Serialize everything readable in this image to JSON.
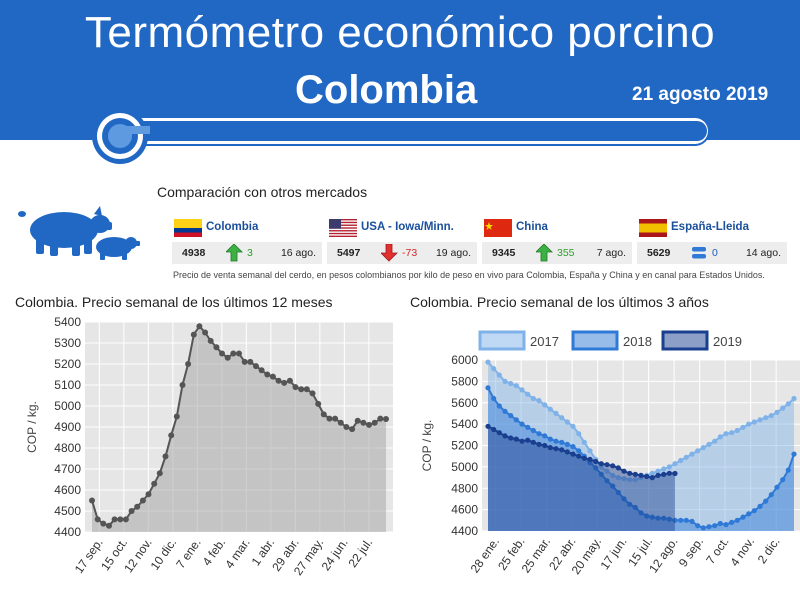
{
  "header": {
    "title": "Termómetro económico porcino",
    "country": "Colombia",
    "date": "21 agosto 2019",
    "bg_color": "#2168c4"
  },
  "comparison": {
    "title": "Comparación con otros mercados",
    "icon": "pigs-icon",
    "footnote": "Precio de venta semanal del cerdo, en pesos colombianos por kilo de peso en vivo para Colombia, España y China y en canal para Estados Unidos.",
    "markets": [
      {
        "name": "Colombia",
        "flag": "colombia-flag",
        "price": "4938",
        "change": "3",
        "direction": "up",
        "change_color": "#2ca02c",
        "date": "16 ago."
      },
      {
        "name": "USA - Iowa/Minn.",
        "flag": "usa-flag",
        "price": "5497",
        "change": "-73",
        "direction": "down",
        "change_color": "#d62728",
        "date": "19 ago."
      },
      {
        "name": "China",
        "flag": "china-flag",
        "price": "9345",
        "change": "355",
        "direction": "up",
        "change_color": "#2ca02c",
        "date": "7 ago."
      },
      {
        "name": "España-Lleida",
        "flag": "spain-flag",
        "price": "5629",
        "change": "0",
        "direction": "equal",
        "change_color": "#1f5bbf",
        "date": "14 ago."
      }
    ]
  },
  "chart_data": [
    {
      "type": "area",
      "title": "Colombia. Precio semanal de los últimos 12 meses",
      "ylabel": "COP / kg.",
      "xlabel": "",
      "ylim": [
        4400,
        5400
      ],
      "yticks": [
        4400,
        4500,
        4600,
        4700,
        4800,
        4900,
        5000,
        5100,
        5200,
        5300,
        5400
      ],
      "xticks": [
        "17 sep.",
        "15 oct.",
        "12 nov.",
        "10 dic.",
        "7 ene.",
        "4 feb.",
        "4 mar.",
        "1 abr.",
        "29 abr.",
        "27 may.",
        "24 jun.",
        "22 jul."
      ],
      "grid": true,
      "color": "#555555",
      "values": [
        4550,
        4460,
        4440,
        4430,
        4460,
        4460,
        4460,
        4500,
        4520,
        4550,
        4580,
        4630,
        4680,
        4760,
        4860,
        4950,
        5100,
        5200,
        5340,
        5380,
        5350,
        5310,
        5280,
        5250,
        5230,
        5250,
        5250,
        5210,
        5210,
        5190,
        5170,
        5150,
        5140,
        5120,
        5110,
        5120,
        5090,
        5080,
        5080,
        5060,
        5010,
        4960,
        4940,
        4940,
        4920,
        4900,
        4890,
        4930,
        4920,
        4910,
        4920,
        4940,
        4938
      ]
    },
    {
      "type": "area",
      "title": "Colombia. Precio semanal de los últimos 3 años",
      "ylabel": "COP / kg.",
      "xlabel": "",
      "ylim": [
        4400,
        6000
      ],
      "yticks": [
        4400,
        4600,
        4800,
        5000,
        5200,
        5400,
        5600,
        5800,
        6000
      ],
      "xticks": [
        "28 ene.",
        "25 feb.",
        "25 mar.",
        "22 abr.",
        "20 may.",
        "17 jun.",
        "15 jul.",
        "12 ago.",
        "9 sep.",
        "7 oct.",
        "4 nov.",
        "2 dic."
      ],
      "grid": true,
      "legend_position": "top",
      "series": [
        {
          "name": "2017",
          "color": "#7fb2e8",
          "values": [
            5980,
            5920,
            5860,
            5800,
            5780,
            5760,
            5720,
            5680,
            5640,
            5620,
            5580,
            5540,
            5500,
            5460,
            5420,
            5380,
            5310,
            5230,
            5150,
            5070,
            5000,
            4960,
            4920,
            4900,
            4890,
            4880,
            4880,
            4900,
            4920,
            4940,
            4960,
            4980,
            5000,
            5030,
            5060,
            5090,
            5120,
            5150,
            5180,
            5210,
            5240,
            5280,
            5310,
            5320,
            5340,
            5370,
            5400,
            5420,
            5440,
            5460,
            5480,
            5510,
            5550,
            5590,
            5640
          ]
        },
        {
          "name": "2018",
          "color": "#2f7ad6",
          "values": [
            5740,
            5640,
            5570,
            5520,
            5480,
            5440,
            5400,
            5370,
            5340,
            5310,
            5290,
            5260,
            5240,
            5230,
            5210,
            5190,
            5150,
            5100,
            5040,
            4990,
            4930,
            4870,
            4820,
            4760,
            4700,
            4650,
            4620,
            4570,
            4540,
            4530,
            4520,
            4520,
            4510,
            4500,
            4500,
            4500,
            4490,
            4450,
            4430,
            4440,
            4450,
            4470,
            4460,
            4480,
            4500,
            4530,
            4560,
            4590,
            4630,
            4680,
            4740,
            4810,
            4880,
            4970,
            5120
          ]
        },
        {
          "name": "2019",
          "color": "#1a3f8f",
          "values": [
            5380,
            5350,
            5320,
            5290,
            5270,
            5260,
            5240,
            5250,
            5230,
            5210,
            5200,
            5180,
            5170,
            5160,
            5140,
            5120,
            5100,
            5080,
            5070,
            5050,
            5030,
            5020,
            5010,
            4990,
            4960,
            4940,
            4930,
            4920,
            4910,
            4900,
            4920,
            4930,
            4940,
            4938
          ]
        }
      ]
    }
  ]
}
